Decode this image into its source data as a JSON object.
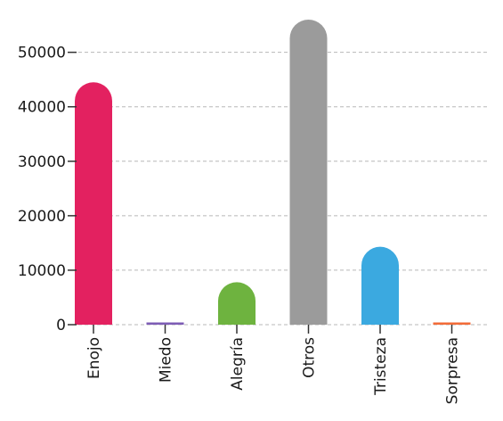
{
  "chart_data": {
    "type": "bar",
    "title": "",
    "xlabel": "",
    "ylabel": "",
    "categories": [
      "Enojo",
      "Miedo",
      "Alegría",
      "Otros",
      "Tristeza",
      "Sorpresa"
    ],
    "values": [
      44500,
      250,
      7800,
      56000,
      14300,
      150
    ],
    "colors": [
      "#e32160",
      "#7d5cb5",
      "#6eb33f",
      "#9b9b9b",
      "#3ba9e0",
      "#f26b38"
    ],
    "ylim": [
      0,
      56000
    ],
    "yticks": [
      0,
      10000,
      20000,
      30000,
      40000,
      50000
    ],
    "ytick_labels": [
      "0",
      "10000",
      "20000",
      "30000",
      "40000",
      "50000"
    ],
    "grid": true,
    "legend": "none"
  }
}
